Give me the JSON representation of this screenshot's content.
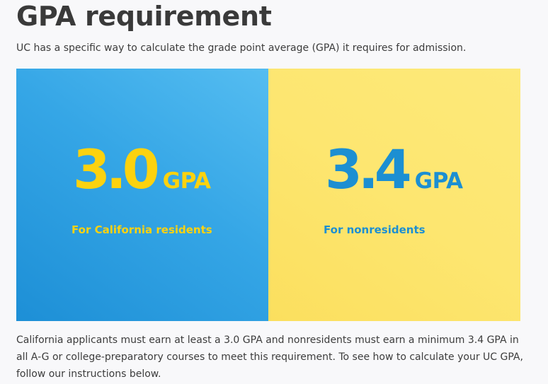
{
  "heading": "GPA requirement",
  "intro": "UC has a specific way to calculate the grade point average (GPA) it requires for admission.",
  "panels": {
    "residents": {
      "number": "3.0",
      "unit": "GPA",
      "label": "For California residents",
      "background": "#35a6e6",
      "text_color": "#fcd20f"
    },
    "nonresidents": {
      "number": "3.4",
      "unit": "GPA",
      "label": "For nonresidents",
      "background": "#fde670",
      "text_color": "#1c8fd2"
    }
  },
  "body": "California applicants must earn at least a 3.0 GPA and nonresidents must earn a minimum 3.4 GPA in all A-G or college-preparatory courses to meet this requirement. To see how to calculate your UC GPA, follow our instructions below."
}
